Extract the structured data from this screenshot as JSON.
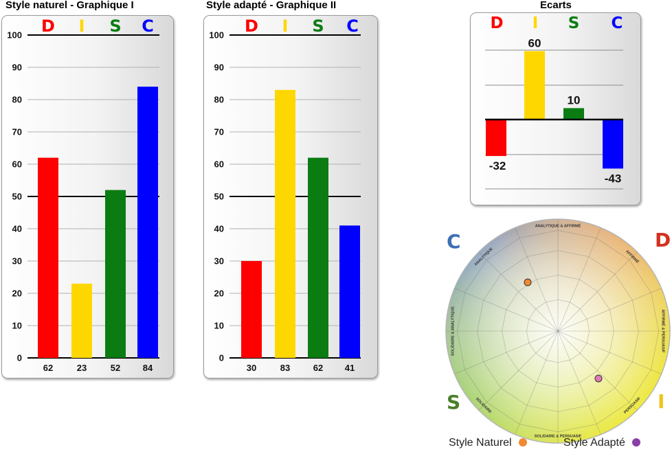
{
  "colors": {
    "D": "#ff0000",
    "I": "#ffd700",
    "S": "#0a7c12",
    "C": "#0000ff"
  },
  "chart_data": [
    {
      "type": "bar",
      "title": "Style naturel - Graphique I",
      "categories": [
        "D",
        "I",
        "S",
        "C"
      ],
      "values": [
        62,
        23,
        52,
        84
      ],
      "yticks": [
        "0",
        "10",
        "20",
        "30",
        "40",
        "50",
        "60",
        "70",
        "80",
        "90",
        "100"
      ],
      "ylim": [
        0,
        100
      ],
      "grid": true
    },
    {
      "type": "bar",
      "title": "Style adapté - Graphique II",
      "categories": [
        "D",
        "I",
        "S",
        "C"
      ],
      "values": [
        30,
        83,
        62,
        41
      ],
      "yticks": [
        "0",
        "10",
        "20",
        "30",
        "40",
        "50",
        "60",
        "70",
        "80",
        "90",
        "100"
      ],
      "ylim": [
        0,
        100
      ],
      "grid": true
    },
    {
      "type": "bar",
      "title": "Ecarts",
      "categories": [
        "D",
        "I",
        "S",
        "C"
      ],
      "values": [
        -32,
        60,
        10,
        -43
      ],
      "grid": true
    }
  ],
  "wheel": {
    "corner_labels": {
      "C": "C",
      "D": "D",
      "S": "S",
      "I": "I"
    },
    "sector_labels": [
      "ANALYTIQUE & AFFIRMÉ",
      "AFFIRMÉ",
      "AFFIRMÉ & PERSUASIF",
      "PERSUASIF",
      "SOLIDAIRE & PERSUASIF",
      "SOLIDAIRE",
      "SOLIDAIRE & ANALYTIQUE",
      "ANALYTIQUE"
    ],
    "legend": [
      {
        "label": "Style Naturel",
        "color": "#f08a30"
      },
      {
        "label": "Style Adapté",
        "color": "#8a3fa8"
      }
    ]
  }
}
